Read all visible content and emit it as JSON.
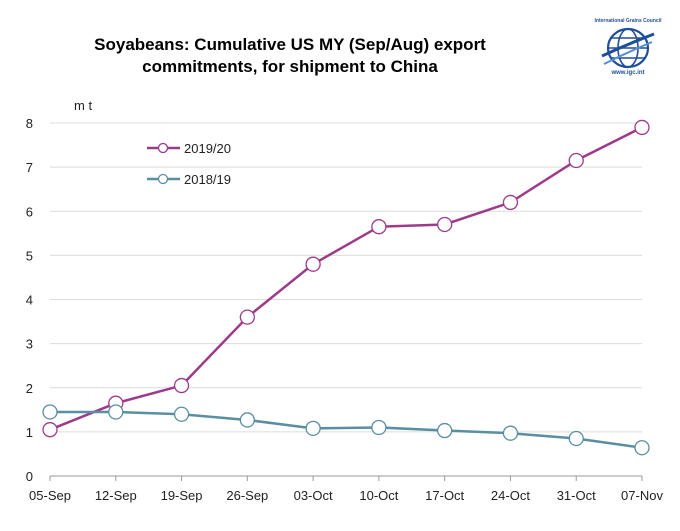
{
  "chart_data": {
    "type": "line",
    "title_lines": [
      "Soyabeans: Cumulative US MY (Sep/Aug) export",
      "commitments, for shipment to China"
    ],
    "ylabel": "m t",
    "xlabel": "",
    "categories": [
      "05-Sep",
      "12-Sep",
      "19-Sep",
      "26-Sep",
      "03-Oct",
      "10-Oct",
      "17-Oct",
      "24-Oct",
      "31-Oct",
      "07-Nov"
    ],
    "ylim": [
      0,
      8
    ],
    "yticks": [
      0,
      1,
      2,
      3,
      4,
      5,
      6,
      7,
      8
    ],
    "grid": true,
    "legend_position": "top-left",
    "series": [
      {
        "name": "2019/20",
        "color": "#9e3a8c",
        "values": [
          1.05,
          1.65,
          2.05,
          3.6,
          4.8,
          5.65,
          5.7,
          6.2,
          7.15,
          7.9
        ]
      },
      {
        "name": "2018/19",
        "color": "#5a8ea3",
        "values": [
          1.45,
          1.45,
          1.4,
          1.27,
          1.08,
          1.1,
          1.03,
          0.97,
          0.85,
          0.64
        ]
      }
    ]
  },
  "logo": {
    "top_text": "International Grains Council",
    "bottom_text": "www.igc.int",
    "color": "#1f4e9a"
  }
}
